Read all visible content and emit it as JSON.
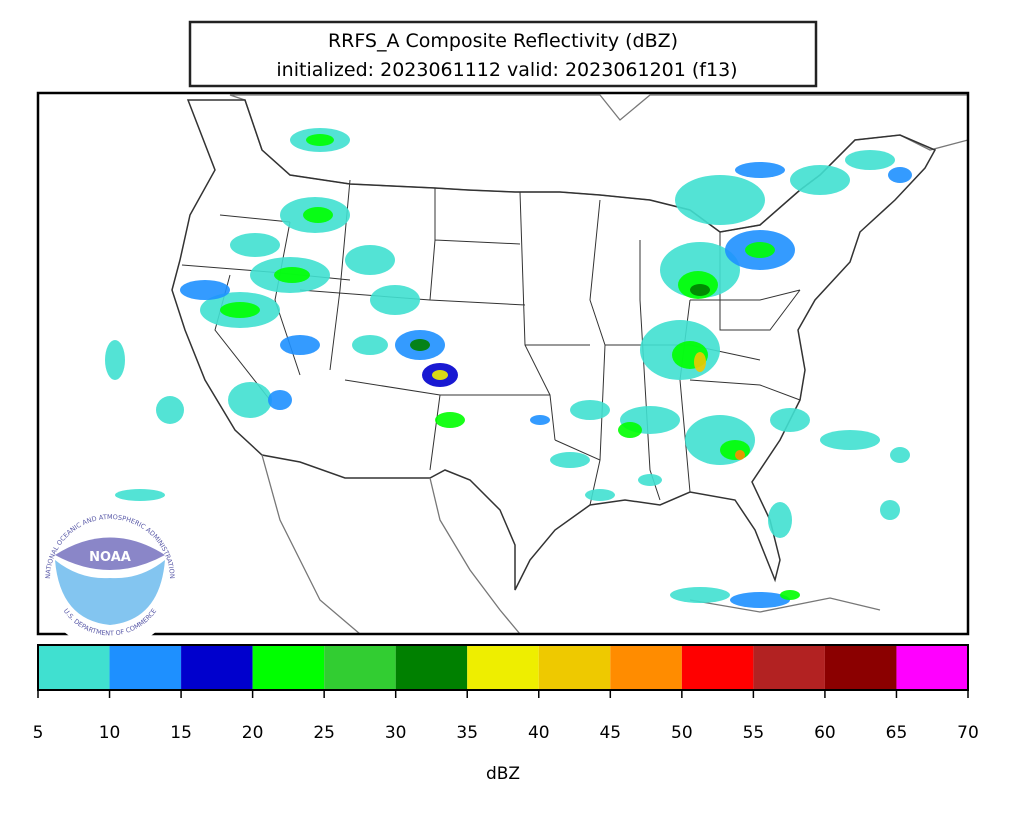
{
  "header": {
    "title": "RRFS_A Composite Reflectivity (dBZ)",
    "subtitle": "initialized: 2023061112 valid: 2023061201 (f13)"
  },
  "logo": {
    "name": "NOAA",
    "ring_top": "NATIONAL OCEANIC AND ATMOSPHERIC ADMINISTRATION",
    "ring_bottom": "U.S. DEPARTMENT OF COMMERCE"
  },
  "colorbar": {
    "label": "dBZ",
    "bounds": [
      5,
      10,
      15,
      20,
      25,
      30,
      35,
      40,
      45,
      50,
      55,
      60,
      65,
      70
    ],
    "colors": [
      "#40e0d0",
      "#1e90ff",
      "#0000cd",
      "#00ff00",
      "#32cd32",
      "#008000",
      "#eeee00",
      "#eec900",
      "#ff8c00",
      "#ff0000",
      "#b22222",
      "#8b0000",
      "#ff00ff"
    ],
    "xlim": [
      5,
      70
    ],
    "xticks": [
      5,
      10,
      15,
      20,
      25,
      30,
      35,
      40,
      45,
      50,
      55,
      60,
      65,
      70
    ]
  }
}
